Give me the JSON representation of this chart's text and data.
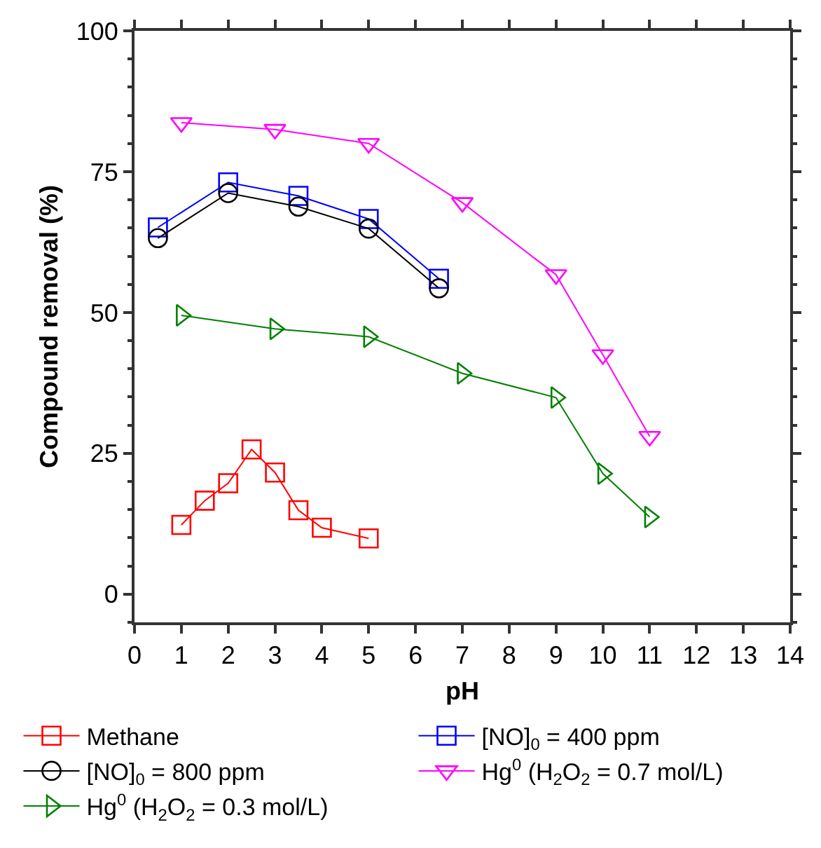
{
  "chart_data": {
    "type": "line",
    "xlabel": "pH",
    "ylabel": "Compound removal (%)",
    "xlim": [
      0,
      14
    ],
    "xticks": [
      0,
      1,
      2,
      3,
      4,
      5,
      6,
      7,
      8,
      9,
      10,
      11,
      12,
      13,
      14
    ],
    "ylim": [
      -5,
      100
    ],
    "yticks": [
      0,
      25,
      50,
      75,
      100
    ],
    "legend": "bottom",
    "line_style": "solid",
    "series": [
      {
        "name": "Methane",
        "color": "#ff0000",
        "marker": "square",
        "x": [
          1,
          1.5,
          2,
          2.5,
          3,
          3.5,
          4,
          5
        ],
        "values": [
          12.3,
          16.6,
          19.7,
          25.7,
          21.6,
          14.9,
          11.8,
          9.9
        ]
      },
      {
        "name": "[NO]$_{0}$ = 400 ppm",
        "color": "#0000ff",
        "marker": "square",
        "x": [
          0.5,
          2,
          3.5,
          5,
          6.5
        ],
        "values": [
          65.1,
          73.1,
          70.7,
          66.6,
          56.0
        ]
      },
      {
        "name": "[NO]$_{0}$ = 800 ppm",
        "color": "#000000",
        "marker": "circle",
        "x": [
          0.5,
          2,
          3.5,
          5,
          6.5
        ],
        "values": [
          63.2,
          71.2,
          68.8,
          64.9,
          54.3
        ]
      },
      {
        "name": "Hg$^{0}$ (H$_{2}$O$_{2}$ = 0.7 mol/L)",
        "color": "#ff00ff",
        "marker": "triangle-down",
        "x": [
          1,
          3,
          5,
          7,
          9,
          10,
          11
        ],
        "values": [
          83.7,
          82.5,
          80.0,
          69.5,
          56.7,
          42.5,
          28.0
        ]
      },
      {
        "name": "Hg$^{0}$ (H$_{2}$O$_{2}$ = 0.3 mol/L)",
        "color": "#008000",
        "marker": "triangle-right",
        "x": [
          1,
          3,
          5,
          7,
          9,
          10,
          11
        ],
        "values": [
          49.5,
          47.1,
          45.7,
          39.2,
          34.9,
          21.4,
          13.7
        ]
      }
    ]
  }
}
